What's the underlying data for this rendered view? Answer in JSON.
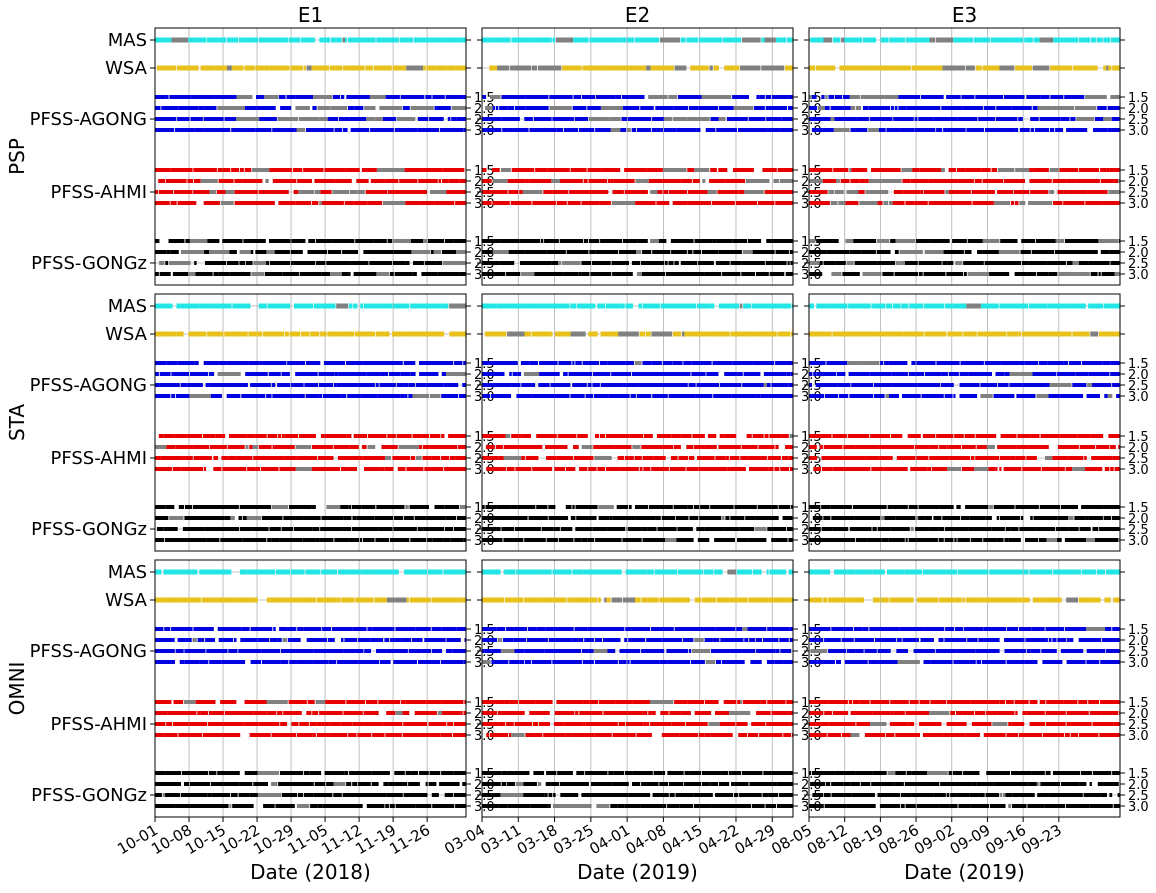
{
  "chart_data": {
    "type": "scatter",
    "description_free": true,
    "columns": [
      {
        "title": "E1",
        "xlabel": "Date (2018)",
        "ticks": [
          "10-01",
          "10-08",
          "10-15",
          "10-22",
          "10-29",
          "11-05",
          "11-12",
          "11-19",
          "11-26"
        ],
        "days": 64
      },
      {
        "title": "E2",
        "xlabel": "Date (2019)",
        "ticks": [
          "03-04",
          "03-11",
          "03-18",
          "03-25",
          "04-01",
          "04-08",
          "04-15",
          "04-22",
          "04-29"
        ],
        "days": 60
      },
      {
        "title": "E3",
        "xlabel": "Date (2019)",
        "ticks": [
          "08-05",
          "08-12",
          "08-19",
          "08-26",
          "09-02",
          "09-09",
          "09-16",
          "09-23"
        ],
        "days": 61
      }
    ],
    "rows": [
      {
        "ylabel": "PSP"
      },
      {
        "ylabel": "STA"
      },
      {
        "ylabel": "OMNI"
      }
    ],
    "models": [
      {
        "name": "MAS",
        "color": "#22e5e5",
        "subticks": []
      },
      {
        "name": "WSA",
        "color": "#e8c21a",
        "subticks": []
      },
      {
        "name": "PFSS-AGONG",
        "color": "#0000e0",
        "subticks": [
          "1.5",
          "2.0",
          "2.5",
          "3.0"
        ]
      },
      {
        "name": "PFSS-AHMI",
        "color": "#e80000",
        "subticks": [
          "1.5",
          "2.0",
          "2.5",
          "3.0"
        ]
      },
      {
        "name": "PFSS-GONGz",
        "color": "#000000",
        "subticks": [
          "1.5",
          "2.0",
          "2.5",
          "3.0"
        ]
      }
    ],
    "mismatch_color": "#808080",
    "grid": true
  }
}
